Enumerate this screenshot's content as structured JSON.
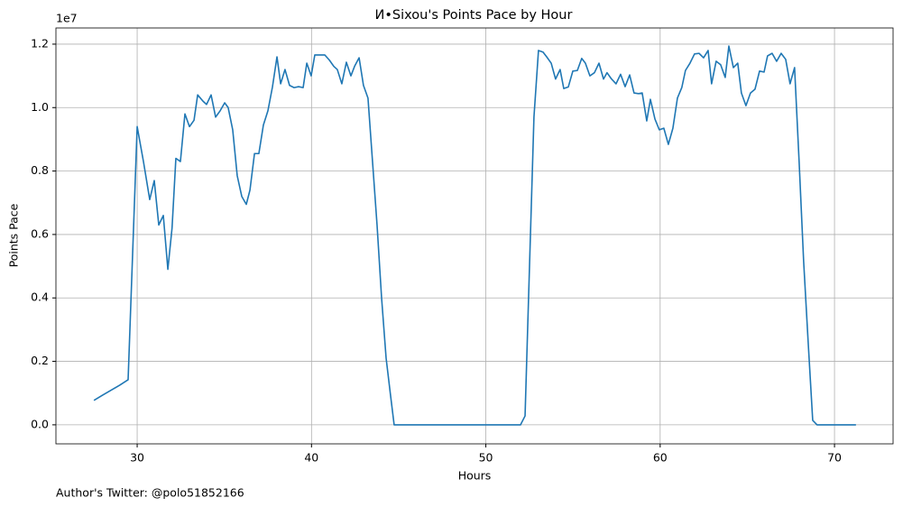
{
  "chart_data": {
    "type": "line",
    "title": "И•Sixou's Points Pace by Hour",
    "xlabel": "Hours",
    "ylabel": "Points Pace",
    "y_offset_label": "1e7",
    "footnote": "Author's Twitter: @polo51852166",
    "grid": true,
    "xlim": [
      25.34,
      73.36
    ],
    "xticks": [
      30,
      40,
      50,
      60,
      70
    ],
    "ylim": [
      -0.06,
      1.251
    ],
    "yticks": [
      {
        "value": 0,
        "label": "0.0"
      },
      {
        "value": 0.2,
        "label": "0.2"
      },
      {
        "value": 0.4,
        "label": "0.4"
      },
      {
        "value": 0.6,
        "label": "0.6"
      },
      {
        "value": 0.8,
        "label": "0.8"
      },
      {
        "value": 1,
        "label": "1.0"
      },
      {
        "value": 1.2,
        "label": "1.2"
      }
    ],
    "x": [
      27.52,
      28.0,
      28.5,
      29.0,
      29.48,
      30.0,
      30.36,
      30.72,
      30.98,
      31.24,
      31.5,
      31.76,
      32.0,
      32.22,
      32.48,
      32.74,
      33.0,
      33.26,
      33.47,
      33.78,
      33.98,
      34.24,
      34.5,
      34.76,
      35.02,
      35.22,
      35.48,
      35.74,
      36.0,
      36.26,
      36.47,
      36.73,
      36.98,
      37.24,
      37.5,
      37.76,
      38.02,
      38.23,
      38.48,
      38.74,
      39.0,
      39.26,
      39.52,
      39.73,
      39.98,
      40.19,
      40.5,
      40.76,
      41.02,
      41.28,
      41.48,
      41.74,
      42.0,
      42.26,
      42.47,
      42.73,
      42.98,
      43.24,
      43.5,
      43.76,
      44.02,
      44.28,
      44.54,
      44.74,
      51.99,
      52.25,
      52.5,
      52.76,
      53.02,
      53.28,
      53.49,
      53.75,
      54.0,
      54.26,
      54.47,
      54.73,
      54.99,
      55.25,
      55.5,
      55.71,
      55.97,
      56.23,
      56.49,
      56.75,
      56.95,
      57.21,
      57.47,
      57.73,
      57.99,
      58.25,
      58.5,
      58.76,
      58.97,
      59.23,
      59.44,
      59.7,
      59.95,
      60.21,
      60.47,
      60.73,
      60.99,
      61.24,
      61.45,
      61.71,
      61.97,
      62.23,
      62.49,
      62.75,
      62.95,
      63.21,
      63.47,
      63.73,
      63.94,
      64.2,
      64.45,
      64.66,
      64.92,
      65.18,
      65.44,
      65.7,
      65.96,
      66.16,
      66.42,
      66.68,
      66.94,
      67.2,
      67.45,
      67.71,
      67.97,
      68.23,
      68.49,
      68.75,
      69.0,
      71.23
    ],
    "series": [
      {
        "name": "Points Pace",
        "color": "#1f77b4",
        "values": [
          0.077,
          0.093,
          0.109,
          0.125,
          0.142,
          0.94,
          0.83,
          0.71,
          0.77,
          0.63,
          0.66,
          0.49,
          0.62,
          0.84,
          0.83,
          0.98,
          0.94,
          0.96,
          1.04,
          1.02,
          1.01,
          1.04,
          0.97,
          0.99,
          1.015,
          1.0,
          0.93,
          0.785,
          0.72,
          0.695,
          0.74,
          0.855,
          0.855,
          0.945,
          0.99,
          1.065,
          1.16,
          1.075,
          1.12,
          1.07,
          1.063,
          1.066,
          1.063,
          1.14,
          1.1,
          1.166,
          1.166,
          1.166,
          1.15,
          1.13,
          1.12,
          1.075,
          1.143,
          1.1,
          1.13,
          1.157,
          1.07,
          1.03,
          0.83,
          0.63,
          0.4,
          0.21,
          0.09,
          0,
          0,
          0.028,
          0.49,
          0.97,
          1.18,
          1.175,
          1.16,
          1.14,
          1.09,
          1.12,
          1.06,
          1.065,
          1.115,
          1.117,
          1.155,
          1.14,
          1.1,
          1.11,
          1.14,
          1.09,
          1.11,
          1.09,
          1.075,
          1.105,
          1.066,
          1.103,
          1.046,
          1.044,
          1.046,
          0.958,
          1.026,
          0.964,
          0.93,
          0.935,
          0.884,
          0.935,
          1.03,
          1.063,
          1.117,
          1.14,
          1.169,
          1.171,
          1.157,
          1.18,
          1.075,
          1.146,
          1.135,
          1.095,
          1.194,
          1.126,
          1.14,
          1.046,
          1.006,
          1.046,
          1.058,
          1.115,
          1.112,
          1.163,
          1.171,
          1.146,
          1.171,
          1.152,
          1.075,
          1.126,
          0.83,
          0.515,
          0.26,
          0.014,
          0,
          0
        ]
      }
    ]
  }
}
